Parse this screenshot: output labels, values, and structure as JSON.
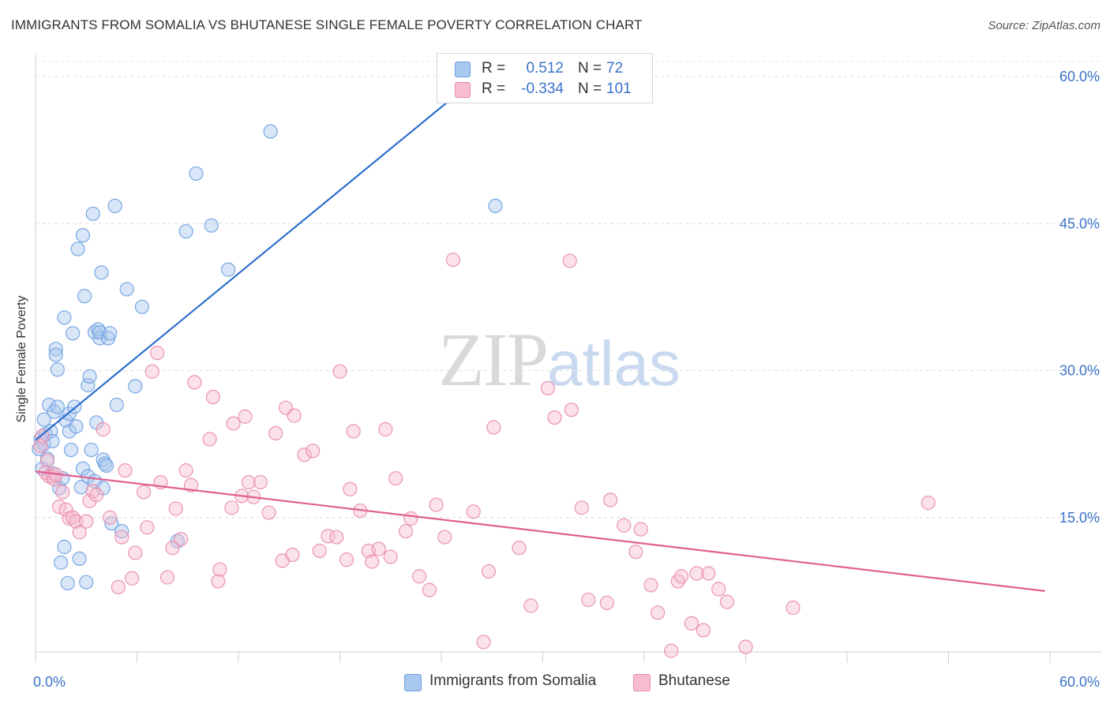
{
  "header": {
    "title": "IMMIGRANTS FROM SOMALIA VS BHUTANESE SINGLE FEMALE POVERTY CORRELATION CHART",
    "source": "Source: ZipAtlas.com"
  },
  "watermark": {
    "zip": "ZIP",
    "atlas": "atlas"
  },
  "legend": {
    "rows": [
      {
        "r_label": "R =",
        "r_value": "0.512",
        "n_label": "N =",
        "n_value": "72",
        "color": "#a9c8f0",
        "border": "#6d9fe0"
      },
      {
        "r_label": "R =",
        "r_value": "-0.334",
        "n_label": "N =",
        "n_value": "101",
        "color": "#f7bcd0",
        "border": "#e98aab"
      }
    ]
  },
  "bottom_legend": {
    "items": [
      {
        "label": "Immigrants from Somalia",
        "color": "#a9c8f0",
        "border": "#6d9fe0"
      },
      {
        "label": "Bhutanese",
        "color": "#f7bcd0",
        "border": "#e98aab"
      }
    ]
  },
  "chart_data": {
    "type": "scatter",
    "title": "IMMIGRANTS FROM SOMALIA VS BHUTANESE SINGLE FEMALE POVERTY CORRELATION CHART",
    "xlabel": "",
    "ylabel": "Single Female Poverty",
    "xlim": [
      0,
      60
    ],
    "ylim": [
      0,
      60
    ],
    "x_tick_labels": [
      "0.0%",
      "60.0%"
    ],
    "y_ticks": [
      15,
      30,
      45,
      60
    ],
    "y_tick_labels": [
      "15.0%",
      "30.0%",
      "45.0%",
      "60.0%"
    ],
    "grid": "horizontal-dashed",
    "legend_position": "top-center",
    "series": [
      {
        "name": "Immigrants from Somalia",
        "color": "#6d9fe0",
        "fill": "#a9c8f0",
        "line_color": "#2e6fce",
        "trend": {
          "x": [
            0.0,
            26.2
          ],
          "y": [
            22.9,
            60.0
          ]
        },
        "points": [
          [
            0.2,
            22.0
          ],
          [
            0.3,
            23.0
          ],
          [
            0.4,
            20.0
          ],
          [
            0.5,
            25.0
          ],
          [
            0.5,
            22.5
          ],
          [
            0.6,
            23.5
          ],
          [
            0.7,
            21.0
          ],
          [
            0.8,
            26.5
          ],
          [
            0.9,
            23.8
          ],
          [
            1.0,
            22.8
          ],
          [
            1.0,
            19.5
          ],
          [
            1.1,
            25.8
          ],
          [
            1.2,
            32.2
          ],
          [
            1.2,
            31.6
          ],
          [
            1.3,
            26.3
          ],
          [
            1.3,
            30.1
          ],
          [
            1.4,
            18.0
          ],
          [
            1.5,
            10.4
          ],
          [
            1.6,
            19.0
          ],
          [
            1.7,
            35.4
          ],
          [
            1.7,
            12.0
          ],
          [
            1.8,
            24.9
          ],
          [
            1.9,
            8.3
          ],
          [
            2.0,
            25.6
          ],
          [
            2.0,
            23.8
          ],
          [
            2.1,
            21.9
          ],
          [
            2.2,
            33.8
          ],
          [
            2.3,
            26.3
          ],
          [
            2.4,
            24.3
          ],
          [
            2.5,
            42.4
          ],
          [
            2.6,
            10.8
          ],
          [
            2.7,
            18.1
          ],
          [
            2.8,
            20.0
          ],
          [
            2.9,
            37.6
          ],
          [
            2.8,
            43.8
          ],
          [
            3.0,
            8.4
          ],
          [
            3.1,
            19.2
          ],
          [
            3.1,
            28.5
          ],
          [
            3.2,
            29.4
          ],
          [
            3.3,
            21.9
          ],
          [
            3.4,
            46.0
          ],
          [
            3.5,
            33.9
          ],
          [
            3.5,
            18.7
          ],
          [
            3.6,
            24.7
          ],
          [
            3.7,
            34.2
          ],
          [
            3.8,
            33.3
          ],
          [
            3.8,
            33.9
          ],
          [
            3.9,
            40.0
          ],
          [
            4.0,
            18.0
          ],
          [
            4.0,
            20.9
          ],
          [
            4.1,
            20.5
          ],
          [
            4.2,
            20.3
          ],
          [
            4.3,
            33.3
          ],
          [
            4.4,
            33.8
          ],
          [
            4.5,
            14.4
          ],
          [
            4.7,
            46.8
          ],
          [
            4.8,
            26.5
          ],
          [
            5.1,
            13.6
          ],
          [
            5.4,
            38.3
          ],
          [
            5.9,
            28.4
          ],
          [
            6.3,
            36.5
          ],
          [
            8.4,
            12.6
          ],
          [
            8.9,
            44.2
          ],
          [
            9.5,
            50.1
          ],
          [
            10.4,
            44.8
          ],
          [
            11.4,
            40.3
          ],
          [
            13.9,
            54.4
          ],
          [
            27.2,
            46.8
          ]
        ]
      },
      {
        "name": "Bhutanese",
        "color": "#e98aab",
        "fill": "#f7bcd0",
        "line_color": "#e0608f",
        "trend": {
          "x": [
            0.0,
            59.7
          ],
          "y": [
            19.7,
            7.5
          ]
        },
        "points": [
          [
            0.3,
            22.3
          ],
          [
            0.4,
            23.3
          ],
          [
            0.6,
            19.6
          ],
          [
            0.7,
            20.8
          ],
          [
            0.8,
            19.2
          ],
          [
            1.0,
            19.2
          ],
          [
            1.1,
            18.9
          ],
          [
            1.2,
            19.4
          ],
          [
            1.4,
            16.1
          ],
          [
            1.6,
            17.6
          ],
          [
            1.8,
            15.8
          ],
          [
            2.0,
            14.9
          ],
          [
            2.2,
            15.0
          ],
          [
            2.4,
            14.6
          ],
          [
            2.6,
            13.5
          ],
          [
            3.0,
            14.6
          ],
          [
            3.2,
            16.7
          ],
          [
            3.4,
            17.7
          ],
          [
            3.6,
            17.3
          ],
          [
            4.0,
            24.0
          ],
          [
            4.4,
            15.0
          ],
          [
            4.9,
            7.9
          ],
          [
            5.1,
            13.0
          ],
          [
            5.3,
            19.8
          ],
          [
            5.7,
            8.8
          ],
          [
            5.9,
            11.4
          ],
          [
            6.4,
            17.6
          ],
          [
            6.6,
            14.0
          ],
          [
            6.9,
            29.9
          ],
          [
            7.2,
            31.8
          ],
          [
            7.4,
            18.6
          ],
          [
            7.8,
            8.9
          ],
          [
            8.1,
            11.9
          ],
          [
            8.3,
            15.9
          ],
          [
            8.6,
            12.8
          ],
          [
            8.9,
            19.8
          ],
          [
            9.2,
            18.3
          ],
          [
            9.4,
            28.8
          ],
          [
            10.3,
            23.0
          ],
          [
            10.5,
            27.3
          ],
          [
            10.8,
            8.5
          ],
          [
            10.9,
            9.7
          ],
          [
            11.6,
            16.0
          ],
          [
            11.7,
            24.6
          ],
          [
            12.2,
            17.2
          ],
          [
            12.4,
            25.3
          ],
          [
            12.6,
            18.6
          ],
          [
            12.9,
            17.1
          ],
          [
            13.3,
            18.6
          ],
          [
            13.8,
            15.5
          ],
          [
            14.2,
            23.6
          ],
          [
            14.6,
            10.6
          ],
          [
            14.8,
            26.2
          ],
          [
            15.2,
            11.2
          ],
          [
            15.3,
            25.4
          ],
          [
            15.9,
            21.4
          ],
          [
            16.4,
            21.8
          ],
          [
            16.8,
            11.6
          ],
          [
            17.3,
            13.1
          ],
          [
            17.8,
            13.0
          ],
          [
            18.0,
            29.9
          ],
          [
            18.4,
            10.7
          ],
          [
            18.6,
            17.9
          ],
          [
            18.8,
            23.8
          ],
          [
            19.2,
            15.7
          ],
          [
            19.7,
            11.6
          ],
          [
            19.9,
            10.5
          ],
          [
            20.3,
            11.8
          ],
          [
            20.7,
            24.0
          ],
          [
            21.0,
            11.0
          ],
          [
            21.3,
            19.0
          ],
          [
            21.9,
            13.6
          ],
          [
            22.2,
            14.9
          ],
          [
            22.7,
            9.0
          ],
          [
            23.3,
            7.6
          ],
          [
            23.7,
            16.3
          ],
          [
            24.2,
            13.0
          ],
          [
            24.7,
            41.3
          ],
          [
            25.9,
            15.6
          ],
          [
            26.5,
            2.3
          ],
          [
            26.8,
            9.5
          ],
          [
            27.1,
            24.2
          ],
          [
            28.6,
            11.9
          ],
          [
            29.3,
            6.0
          ],
          [
            30.3,
            28.2
          ],
          [
            30.7,
            25.2
          ],
          [
            31.6,
            41.2
          ],
          [
            31.7,
            26.0
          ],
          [
            32.3,
            16.0
          ],
          [
            32.7,
            6.6
          ],
          [
            33.8,
            6.3
          ],
          [
            34.0,
            16.8
          ],
          [
            34.8,
            14.2
          ],
          [
            35.5,
            11.5
          ],
          [
            35.8,
            13.8
          ],
          [
            36.4,
            8.1
          ],
          [
            36.8,
            5.3
          ],
          [
            37.6,
            1.4
          ],
          [
            38.0,
            8.5
          ],
          [
            38.2,
            9.0
          ],
          [
            38.8,
            4.2
          ],
          [
            39.1,
            9.3
          ],
          [
            39.5,
            3.5
          ],
          [
            39.8,
            9.3
          ],
          [
            40.4,
            7.7
          ],
          [
            40.9,
            6.4
          ],
          [
            42.0,
            1.8
          ],
          [
            44.8,
            5.8
          ],
          [
            52.8,
            16.5
          ]
        ]
      }
    ]
  }
}
